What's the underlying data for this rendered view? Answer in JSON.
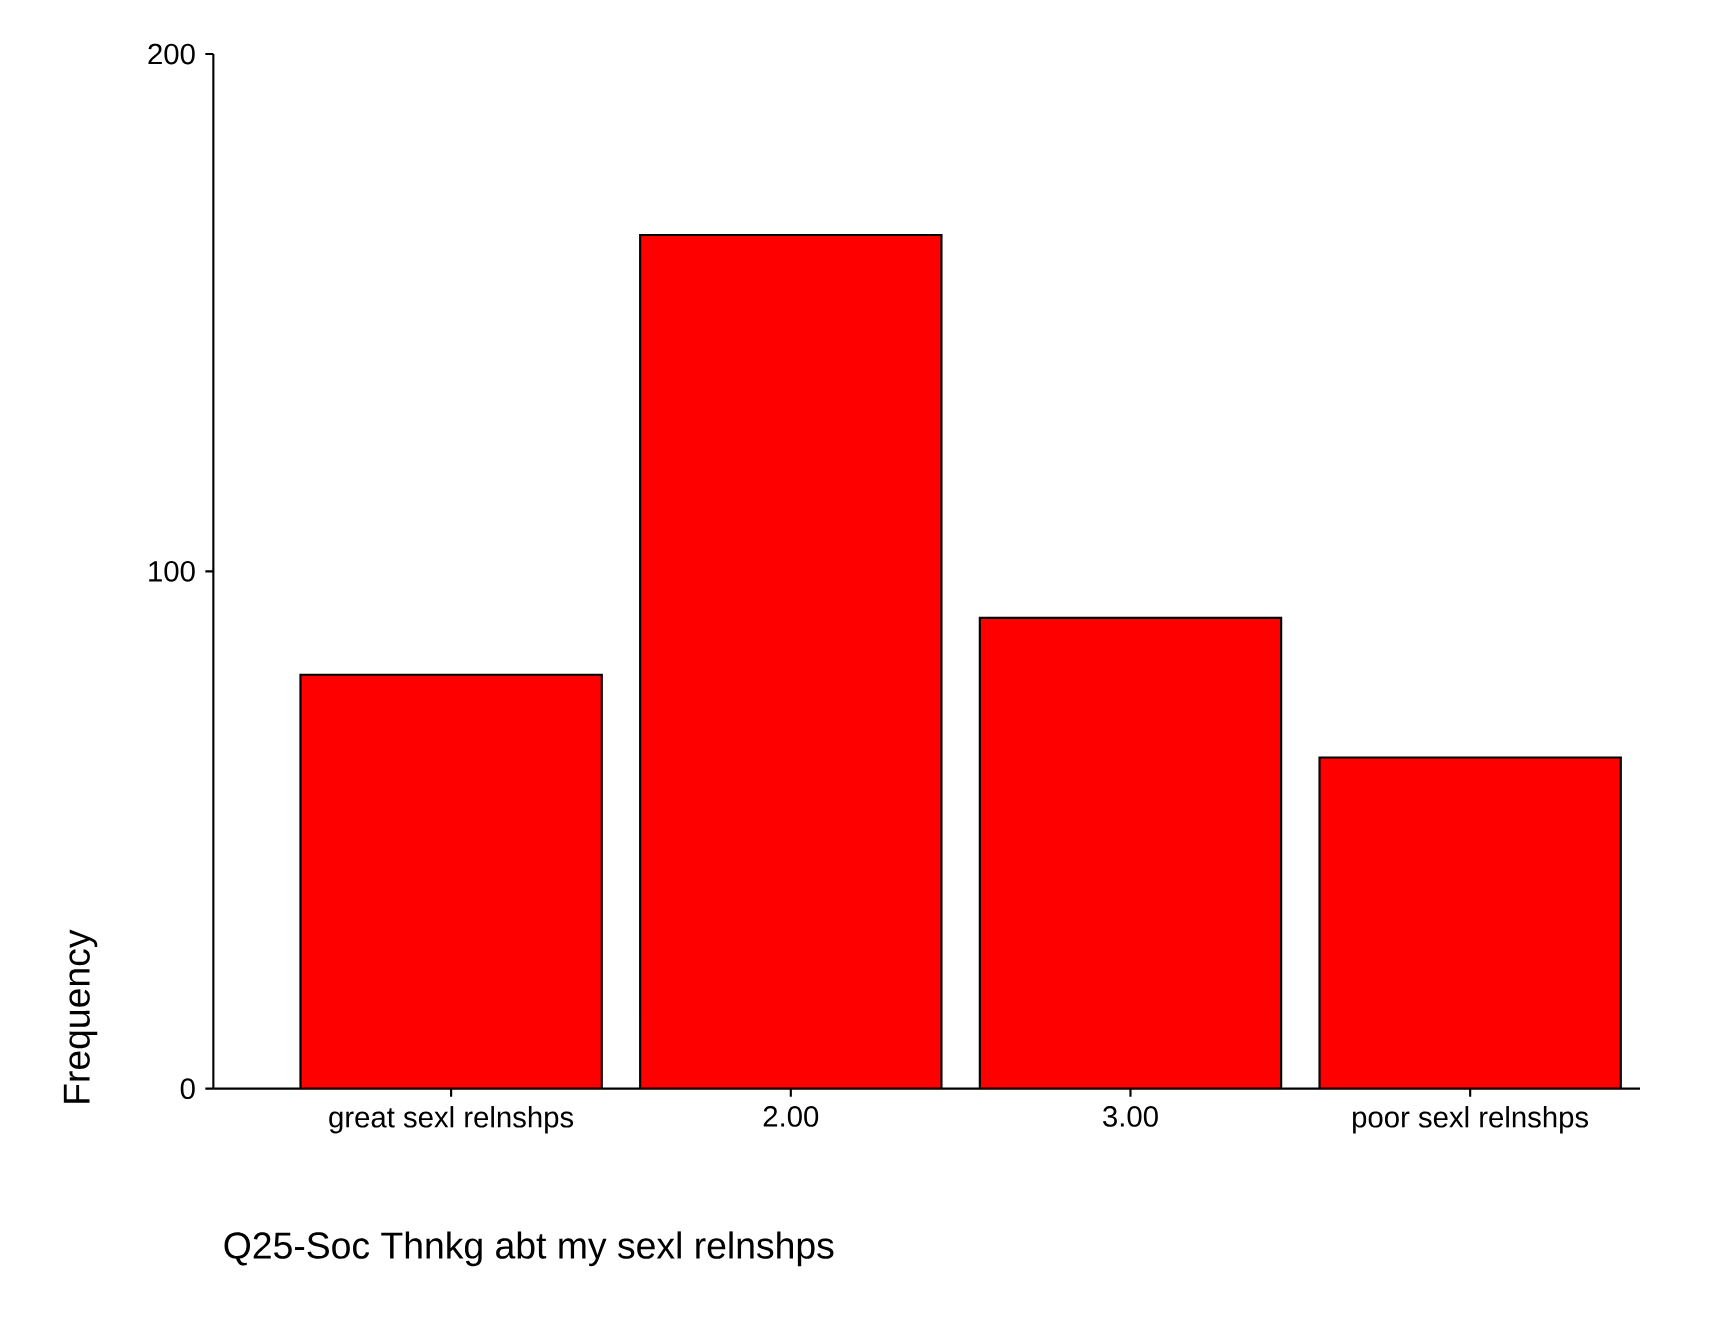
{
  "chart_data": {
    "type": "bar",
    "xlabel": "Q25-Soc Thnkg abt my sexl relnshps",
    "ylabel": "Frequency",
    "categories": [
      "great sexl relnshps",
      "2.00",
      "3.00",
      "poor sexl relnshps"
    ],
    "values": [
      80,
      165,
      91,
      64
    ],
    "color": "#ff0000",
    "ylim": [
      0,
      200
    ],
    "yticks": [
      0,
      100,
      200
    ],
    "grid": false
  }
}
